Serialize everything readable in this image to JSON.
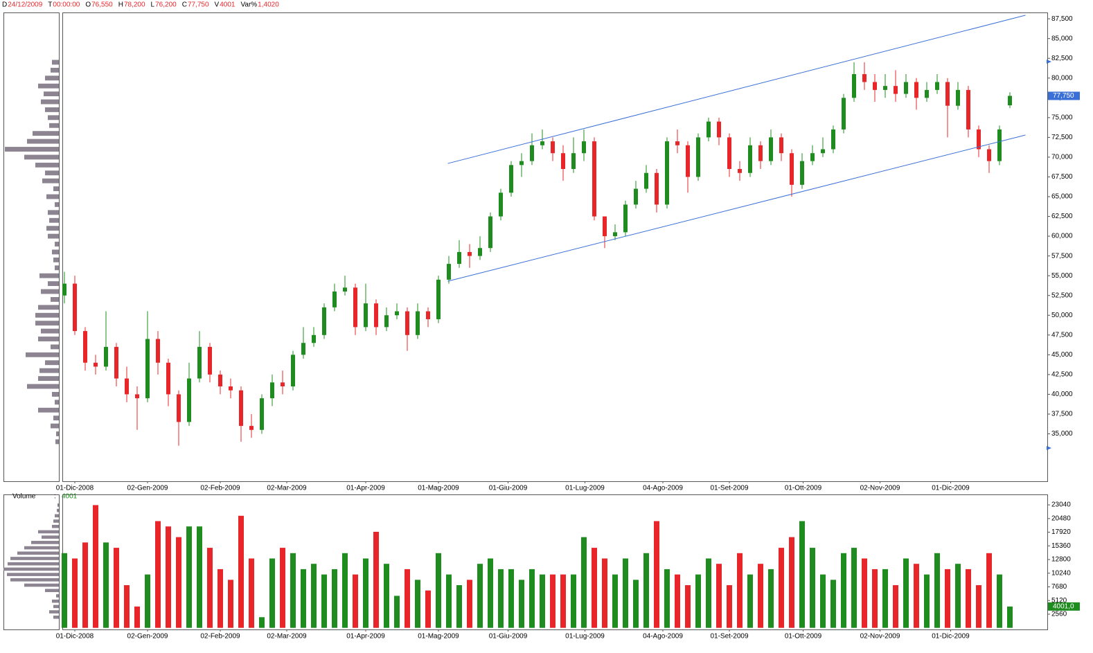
{
  "header": [
    {
      "label": "D",
      "value": "24/12/2009"
    },
    {
      "label": "T",
      "value": "00:00:00"
    },
    {
      "label": "O",
      "value": "76,550"
    },
    {
      "label": "H",
      "value": "78,200"
    },
    {
      "label": "L",
      "value": "76,200"
    },
    {
      "label": "C",
      "value": "77,750"
    },
    {
      "label": "V",
      "value": "4001"
    },
    {
      "label": "Var%",
      "value": "1,4020"
    }
  ],
  "chart_data": [
    {
      "type": "candlestick",
      "up_color": "#1e8c1e",
      "down_color": "#e8262a",
      "xlim": [
        -0.2,
        94.6
      ],
      "xticks": [
        {
          "value": 1,
          "label": "01-Dic-2008"
        },
        {
          "value": 8,
          "label": "02-Gen-2009"
        },
        {
          "value": 15,
          "label": "02-Feb-2009"
        },
        {
          "value": 21.4,
          "label": "02-Mar-2009"
        },
        {
          "value": 29,
          "label": "01-Apr-2009"
        },
        {
          "value": 36,
          "label": "01-Mag-2009"
        },
        {
          "value": 42.7,
          "label": "01-Giu-2009"
        },
        {
          "value": 50.1,
          "label": "01-Lug-2009"
        },
        {
          "value": 57.6,
          "label": "04-Ago-2009"
        },
        {
          "value": 64,
          "label": "01-Set-2009"
        },
        {
          "value": 71.1,
          "label": "01-Ott-2009"
        },
        {
          "value": 78.5,
          "label": "02-Nov-2009"
        },
        {
          "value": 85.3,
          "label": "01-Dic-2009"
        }
      ],
      "ylim": [
        29000,
        88300
      ],
      "yticks": [
        {
          "value": 35000,
          "label": "35,000"
        },
        {
          "value": 37500,
          "label": "37,500"
        },
        {
          "value": 40000,
          "label": "40,000"
        },
        {
          "value": 42500,
          "label": "42,500"
        },
        {
          "value": 45000,
          "label": "45,000"
        },
        {
          "value": 47500,
          "label": "47,500"
        },
        {
          "value": 50000,
          "label": "50,000"
        },
        {
          "value": 52500,
          "label": "52,500"
        },
        {
          "value": 55000,
          "label": "55,000"
        },
        {
          "value": 57500,
          "label": "57,500"
        },
        {
          "value": 60000,
          "label": "60,000"
        },
        {
          "value": 62500,
          "label": "62,500"
        },
        {
          "value": 65000,
          "label": "65,000"
        },
        {
          "value": 67500,
          "label": "67,500"
        },
        {
          "value": 70000,
          "label": "70,000"
        },
        {
          "value": 72500,
          "label": "72,500"
        },
        {
          "value": 75000,
          "label": "75,000"
        },
        {
          "value": 77500,
          "label": "77,500"
        },
        {
          "value": 80000,
          "label": "80,000"
        },
        {
          "value": 82500,
          "label": "82,500"
        },
        {
          "value": 85000,
          "label": "85,000"
        },
        {
          "value": 87500,
          "label": "87,500"
        }
      ],
      "open": [
        52500,
        54000,
        48000,
        44000,
        43500,
        46000,
        42000,
        40000,
        39500,
        47000,
        44000,
        40000,
        36500,
        42000,
        46000,
        42500,
        41000,
        40500,
        36000,
        35500,
        39500,
        41500,
        41000,
        45000,
        46500,
        47500,
        51000,
        53000,
        53500,
        48500,
        51500,
        48500,
        50000,
        50500,
        47500,
        50500,
        49500,
        54500,
        56500,
        58000,
        57500,
        58500,
        62500,
        65500,
        69000,
        69500,
        71500,
        72000,
        70500,
        68500,
        70500,
        72000,
        62500,
        60000,
        60500,
        64000,
        66000,
        68000,
        64000,
        72000,
        71500,
        67500,
        72500,
        74500,
        72500,
        68500,
        68000,
        71500,
        69500,
        72500,
        70500,
        66500,
        69500,
        70500,
        71000,
        73500,
        77500,
        80500,
        79500,
        78500,
        79000,
        78000,
        79500,
        77500,
        78500,
        79500,
        76500,
        78500,
        73500,
        71000,
        69500,
        76550
      ],
      "high": [
        55500,
        55000,
        48500,
        45000,
        50500,
        46500,
        43500,
        41000,
        50500,
        48000,
        44500,
        40500,
        44000,
        48000,
        46500,
        43000,
        42000,
        41000,
        37500,
        40000,
        42500,
        43000,
        45500,
        48500,
        48500,
        51500,
        54000,
        55000,
        54000,
        54000,
        52000,
        51000,
        51500,
        51000,
        51500,
        51000,
        55000,
        57500,
        59500,
        59000,
        60000,
        63000,
        66000,
        69500,
        70500,
        73000,
        73500,
        72500,
        71500,
        72500,
        73500,
        72500,
        62500,
        61500,
        64500,
        67000,
        69000,
        68500,
        72500,
        73500,
        72000,
        73000,
        75000,
        75000,
        73000,
        69500,
        72500,
        72000,
        73500,
        73000,
        71000,
        70500,
        71500,
        72500,
        74000,
        78000,
        82000,
        82000,
        80500,
        80500,
        81000,
        80500,
        80000,
        79500,
        80500,
        80000,
        79500,
        79000,
        74000,
        71500,
        74000,
        78200
      ],
      "low": [
        51500,
        47500,
        43000,
        42500,
        43000,
        41000,
        39000,
        35500,
        39000,
        42500,
        38500,
        33500,
        36000,
        41500,
        41500,
        40000,
        39500,
        34000,
        34500,
        35000,
        38500,
        40000,
        40500,
        44500,
        46000,
        47000,
        50500,
        52500,
        47500,
        48000,
        47500,
        48000,
        49500,
        45500,
        47000,
        48500,
        49000,
        54000,
        56000,
        56000,
        57000,
        58000,
        62000,
        65000,
        67500,
        69000,
        71000,
        69500,
        67000,
        68000,
        69500,
        62000,
        58500,
        59500,
        60000,
        63500,
        65500,
        63000,
        63500,
        70500,
        65500,
        67000,
        72000,
        71500,
        67500,
        67000,
        67500,
        68500,
        69000,
        69500,
        65000,
        66000,
        69000,
        70000,
        70500,
        73000,
        77000,
        78500,
        77000,
        77500,
        77000,
        77500,
        76000,
        77000,
        78000,
        72500,
        76000,
        72500,
        70000,
        68000,
        69000,
        76200
      ],
      "close": [
        54000,
        48000,
        44000,
        43500,
        46000,
        42000,
        40000,
        39500,
        47000,
        44000,
        40000,
        36500,
        42000,
        46000,
        42500,
        41000,
        40500,
        36000,
        35500,
        39500,
        41500,
        41000,
        45000,
        46500,
        47500,
        51000,
        53000,
        53500,
        48500,
        51500,
        48500,
        50000,
        50500,
        47500,
        50500,
        49500,
        54500,
        56500,
        58000,
        57500,
        58500,
        62500,
        65500,
        69000,
        69500,
        71500,
        72000,
        70500,
        68500,
        70500,
        72000,
        62500,
        60000,
        60500,
        64000,
        66000,
        68000,
        64000,
        72000,
        71500,
        67500,
        72500,
        74500,
        72500,
        68500,
        68000,
        71500,
        69500,
        72500,
        70500,
        66500,
        69500,
        70500,
        71000,
        73500,
        77500,
        80500,
        79500,
        78500,
        79000,
        78000,
        79500,
        77500,
        78500,
        79500,
        76500,
        78500,
        73500,
        71000,
        69500,
        73500,
        77750
      ],
      "last_label": "77,750",
      "last_label_color": "#3a6fd8",
      "lines": [
        {
          "color": "#3a6fd8",
          "x": [
            36.9,
            92.5
          ],
          "y": [
            69200,
            87950
          ]
        },
        {
          "color": "#3a6fd8",
          "x": [
            36.9,
            92.5
          ],
          "y": [
            54300,
            72800
          ]
        }
      ],
      "price_profile": {
        "color": "#8c8490",
        "levels": [
          34000,
          35000,
          36000,
          37000,
          38000,
          39000,
          40000,
          41000,
          42000,
          43000,
          44000,
          45000,
          46000,
          47000,
          48000,
          49000,
          50000,
          51000,
          52000,
          53000,
          54000,
          55000,
          56000,
          57000,
          58000,
          59000,
          60000,
          61000,
          62000,
          63000,
          64000,
          65000,
          66000,
          67000,
          68000,
          69000,
          70000,
          71000,
          72000,
          73000,
          74000,
          75000,
          76000,
          77000,
          78000,
          79000,
          80000,
          81000,
          82000
        ],
        "values": [
          5,
          4,
          12,
          8,
          30,
          6,
          10,
          46,
          30,
          28,
          20,
          48,
          12,
          30,
          26,
          34,
          34,
          30,
          12,
          26,
          16,
          28,
          6,
          8,
          10,
          6,
          16,
          18,
          14,
          16,
          6,
          18,
          8,
          24,
          20,
          34,
          50,
          78,
          46,
          38,
          14,
          16,
          20,
          26,
          22,
          30,
          20,
          12,
          10
        ]
      }
    },
    {
      "type": "bar",
      "title": "Volume",
      "separator": ":",
      "value_text": "4001",
      "last_label": "4001,0",
      "last_label_color": "#1e8c1e",
      "ylim": [
        -300,
        25000
      ],
      "yticks": [
        2560,
        5120,
        7680,
        10240,
        12800,
        15360,
        17920,
        20480,
        23040
      ],
      "xticks": [
        {
          "value": 1,
          "label": "01-Dic-2008"
        },
        {
          "value": 8,
          "label": "02-Gen-2009"
        },
        {
          "value": 15,
          "label": "02-Feb-2009"
        },
        {
          "value": 21.4,
          "label": "02-Mar-2009"
        },
        {
          "value": 29,
          "label": "01-Apr-2009"
        },
        {
          "value": 36,
          "label": "01-Mag-2009"
        },
        {
          "value": 42.7,
          "label": "01-Giu-2009"
        },
        {
          "value": 50.1,
          "label": "01-Lug-2009"
        },
        {
          "value": 57.6,
          "label": "04-Ago-2009"
        },
        {
          "value": 64,
          "label": "01-Set-2009"
        },
        {
          "value": 71.1,
          "label": "01-Ott-2009"
        },
        {
          "value": 78.5,
          "label": "02-Nov-2009"
        },
        {
          "value": 85.3,
          "label": "01-Dic-2009"
        }
      ],
      "values": [
        14000,
        13000,
        16000,
        23000,
        16000,
        15000,
        8000,
        4000,
        10000,
        20000,
        19000,
        17000,
        19000,
        19000,
        15000,
        11000,
        9000,
        21000,
        13000,
        2000,
        13000,
        15000,
        14000,
        11000,
        12000,
        10000,
        11000,
        14000,
        10000,
        13000,
        18000,
        12000,
        6000,
        11000,
        9000,
        7000,
        14000,
        10000,
        8000,
        9000,
        12000,
        13000,
        11000,
        11000,
        9000,
        11000,
        10000,
        10000,
        10000,
        10000,
        17000,
        15000,
        13000,
        10000,
        13000,
        9000,
        14000,
        20000,
        11000,
        10000,
        8000,
        10000,
        13000,
        12000,
        8000,
        14000,
        10000,
        12000,
        11000,
        15000,
        17000,
        20000,
        15000,
        10000,
        9000,
        14000,
        15000,
        13000,
        11000,
        11000,
        8000,
        13000,
        12000,
        10000,
        14000,
        11000,
        12000,
        11000,
        8000,
        14000,
        10000,
        4001
      ],
      "volume_profile": {
        "color": "#8c8490",
        "levels": [
          2000,
          3000,
          4000,
          5000,
          6000,
          7000,
          8000,
          9000,
          10000,
          11000,
          12000,
          13000,
          14000,
          15000,
          16000,
          17000,
          18000,
          19000,
          20000,
          21000,
          22000,
          23000
        ],
        "values": [
          8,
          14,
          8,
          10,
          4,
          20,
          50,
          70,
          75,
          80,
          74,
          70,
          60,
          50,
          40,
          25,
          30,
          10,
          8,
          6,
          3,
          2
        ]
      }
    }
  ]
}
